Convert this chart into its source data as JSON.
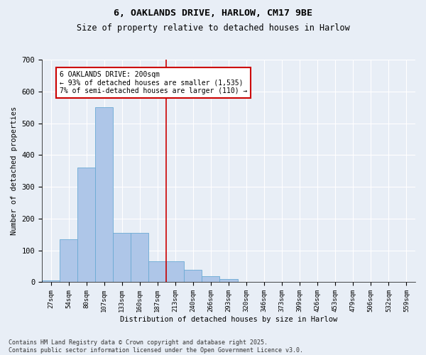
{
  "title1": "6, OAKLANDS DRIVE, HARLOW, CM17 9BE",
  "title2": "Size of property relative to detached houses in Harlow",
  "xlabel": "Distribution of detached houses by size in Harlow",
  "ylabel": "Number of detached properties",
  "bar_labels": [
    "27sqm",
    "54sqm",
    "80sqm",
    "107sqm",
    "133sqm",
    "160sqm",
    "187sqm",
    "213sqm",
    "240sqm",
    "266sqm",
    "293sqm",
    "320sqm",
    "346sqm",
    "373sqm",
    "399sqm",
    "426sqm",
    "453sqm",
    "479sqm",
    "506sqm",
    "532sqm",
    "559sqm"
  ],
  "bar_values": [
    5,
    135,
    360,
    550,
    155,
    155,
    65,
    65,
    40,
    20,
    10,
    2,
    1,
    0,
    0,
    0,
    0,
    0,
    0,
    0,
    0
  ],
  "bar_color": "#aec6e8",
  "bar_edgecolor": "#6aaad4",
  "background_color": "#e8eef6",
  "grid_color": "#ffffff",
  "vline_x_index": 7,
  "vline_color": "#cc0000",
  "annotation_text": "6 OAKLANDS DRIVE: 200sqm\n← 93% of detached houses are smaller (1,535)\n7% of semi-detached houses are larger (110) →",
  "annotation_box_facecolor": "#ffffff",
  "annotation_box_edgecolor": "#cc0000",
  "footer_text": "Contains HM Land Registry data © Crown copyright and database right 2025.\nContains public sector information licensed under the Open Government Licence v3.0.",
  "ylim": [
    0,
    700
  ],
  "yticks": [
    0,
    100,
    200,
    300,
    400,
    500,
    600,
    700
  ]
}
